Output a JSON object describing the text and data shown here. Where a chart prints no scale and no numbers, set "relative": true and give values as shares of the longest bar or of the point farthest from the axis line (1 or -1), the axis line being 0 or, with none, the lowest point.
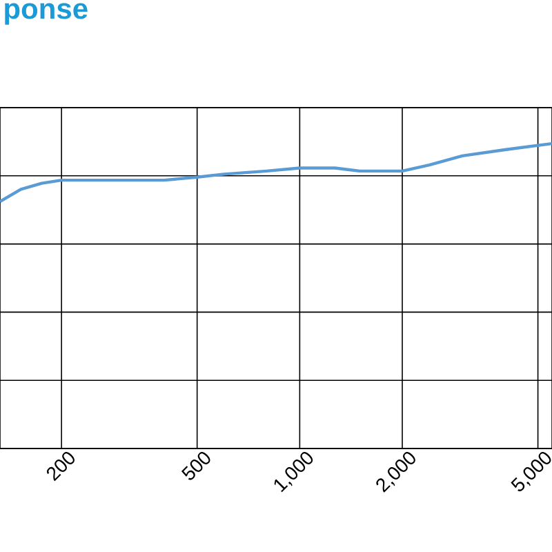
{
  "chart_data": {
    "type": "line",
    "title": "ponse",
    "relative": true,
    "log": "x",
    "grid": true,
    "xlim": [
      132,
      5500
    ],
    "xticks": [
      200,
      500,
      {
        "value": 1000,
        "label": "1,000"
      },
      {
        "value": 2000,
        "label": "2,000"
      },
      {
        "value": 5000,
        "label": "5,000"
      }
    ],
    "x": [
      132,
      152,
      175,
      200,
      300,
      400,
      500,
      600,
      800,
      1000,
      1270,
      1500,
      2000,
      2400,
      3000,
      4000,
      5500
    ],
    "series": [
      {
        "color": "#5b9bd5",
        "values": [
          0.81,
          0.85,
          0.87,
          0.88,
          0.88,
          0.88,
          0.89,
          0.9,
          0.91,
          0.92,
          0.92,
          0.91,
          0.91,
          0.93,
          0.96,
          0.98,
          1.0
        ]
      }
    ]
  }
}
